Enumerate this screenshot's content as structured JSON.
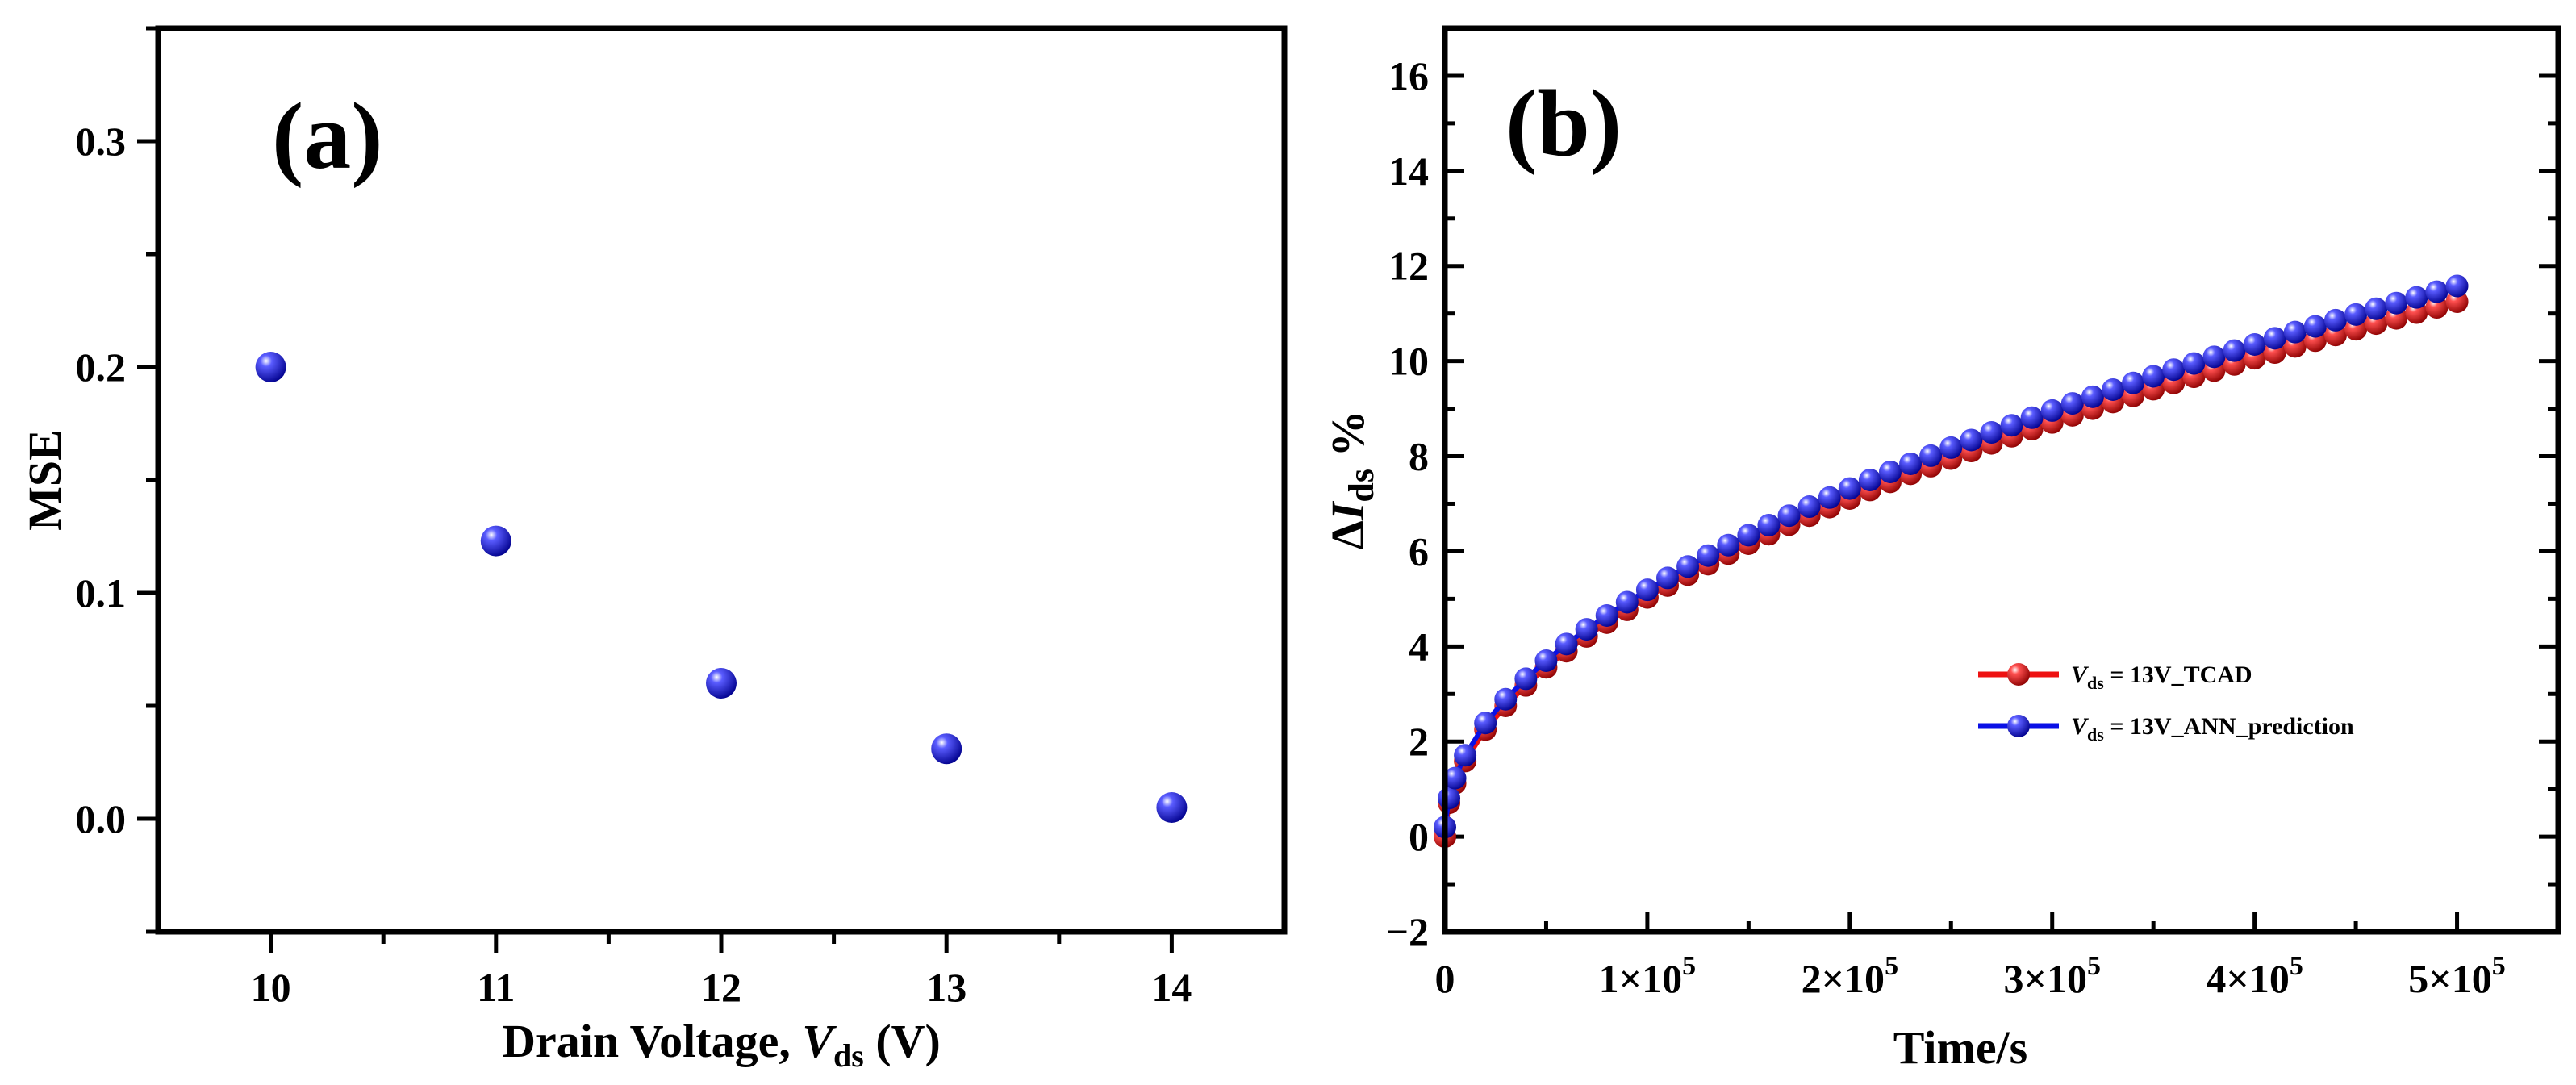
{
  "colors": {
    "marker_blue": "#0a10e6",
    "marker_red": "#ee1111",
    "axis": "#000000"
  },
  "chart_data": [
    {
      "panel": "(a)",
      "type": "scatter",
      "xlabel_main": "Drain Voltage, ",
      "xlabel_var": "V",
      "xlabel_sub": "ds",
      "xlabel_unit": " (V)",
      "ylabel": "MSE",
      "xlim": [
        9.5,
        14.5
      ],
      "ylim": [
        -0.05,
        0.35
      ],
      "x_ticks": [
        "10",
        "11",
        "12",
        "13",
        "14"
      ],
      "y_ticks": [
        "0.0",
        "0.1",
        "0.2",
        "0.3"
      ],
      "x": [
        10,
        11,
        12,
        13,
        14
      ],
      "y": [
        0.2,
        0.123,
        0.06,
        0.031,
        0.005
      ]
    },
    {
      "panel": "(b)",
      "type": "line",
      "xlabel": "Time/s",
      "ylabel_delta": "Δ",
      "ylabel_var": "I",
      "ylabel_sub": "ds",
      "ylabel_unit": " %",
      "xlim": [
        0,
        550000
      ],
      "ylim": [
        -2,
        17
      ],
      "x_ticks": [
        {
          "mant": "0",
          "exp": ""
        },
        {
          "mant": "1×10",
          "exp": "5"
        },
        {
          "mant": "2×10",
          "exp": "5"
        },
        {
          "mant": "3×10",
          "exp": "5"
        },
        {
          "mant": "4×10",
          "exp": "5"
        },
        {
          "mant": "5×10",
          "exp": "5"
        }
      ],
      "y_ticks": [
        "−2",
        "0",
        "2",
        "4",
        "6",
        "8",
        "10",
        "12",
        "14",
        "16"
      ],
      "legend_position": "center-right",
      "series": [
        {
          "legend_var": "V",
          "legend_sub": "ds",
          "legend_rest": " = 13V_TCAD",
          "color": "#ee1111",
          "x": [
            0,
            2000,
            5000,
            10000,
            20000,
            30000,
            40000,
            50000,
            60000,
            70000,
            80000,
            90000,
            100000,
            110000,
            120000,
            130000,
            140000,
            150000,
            160000,
            170000,
            180000,
            190000,
            200000,
            210000,
            220000,
            230000,
            240000,
            250000,
            260000,
            270000,
            280000,
            290000,
            300000,
            310000,
            320000,
            330000,
            340000,
            350000,
            360000,
            370000,
            380000,
            390000,
            400000,
            410000,
            420000,
            430000,
            440000,
            450000,
            460000,
            470000,
            480000,
            490000,
            500000
          ],
          "y": [
            0,
            0.71,
            1.12,
            1.59,
            2.25,
            2.75,
            3.18,
            3.56,
            3.9,
            4.21,
            4.5,
            4.77,
            5.03,
            5.28,
            5.51,
            5.73,
            5.95,
            6.16,
            6.36,
            6.56,
            6.75,
            6.93,
            7.11,
            7.29,
            7.46,
            7.63,
            7.79,
            7.95,
            8.11,
            8.27,
            8.42,
            8.57,
            8.71,
            8.86,
            9.0,
            9.14,
            9.27,
            9.41,
            9.54,
            9.67,
            9.8,
            9.93,
            10.06,
            10.18,
            10.31,
            10.43,
            10.55,
            10.67,
            10.79,
            10.9,
            11.02,
            11.13,
            11.25
          ]
        },
        {
          "legend_var": "V",
          "legend_sub": "ds",
          "legend_rest": " = 13V_ANN_prediction",
          "color": "#0a10e6",
          "x": [
            0,
            2000,
            5000,
            10000,
            20000,
            30000,
            40000,
            50000,
            60000,
            70000,
            80000,
            90000,
            100000,
            110000,
            120000,
            130000,
            140000,
            150000,
            160000,
            170000,
            180000,
            190000,
            200000,
            210000,
            220000,
            230000,
            240000,
            250000,
            260000,
            270000,
            280000,
            290000,
            300000,
            310000,
            320000,
            330000,
            340000,
            350000,
            360000,
            370000,
            380000,
            390000,
            400000,
            410000,
            420000,
            430000,
            440000,
            450000,
            460000,
            470000,
            480000,
            490000,
            500000
          ],
          "y": [
            0.2,
            0.81,
            1.23,
            1.71,
            2.39,
            2.89,
            3.32,
            3.7,
            4.05,
            4.36,
            4.65,
            4.93,
            5.19,
            5.44,
            5.68,
            5.91,
            6.13,
            6.34,
            6.55,
            6.75,
            6.94,
            7.13,
            7.32,
            7.5,
            7.67,
            7.84,
            8.01,
            8.18,
            8.34,
            8.5,
            8.65,
            8.81,
            8.96,
            9.11,
            9.25,
            9.4,
            9.54,
            9.68,
            9.82,
            9.95,
            10.09,
            10.22,
            10.35,
            10.48,
            10.61,
            10.73,
            10.86,
            10.98,
            11.1,
            11.22,
            11.34,
            11.46,
            11.58
          ]
        }
      ]
    }
  ]
}
